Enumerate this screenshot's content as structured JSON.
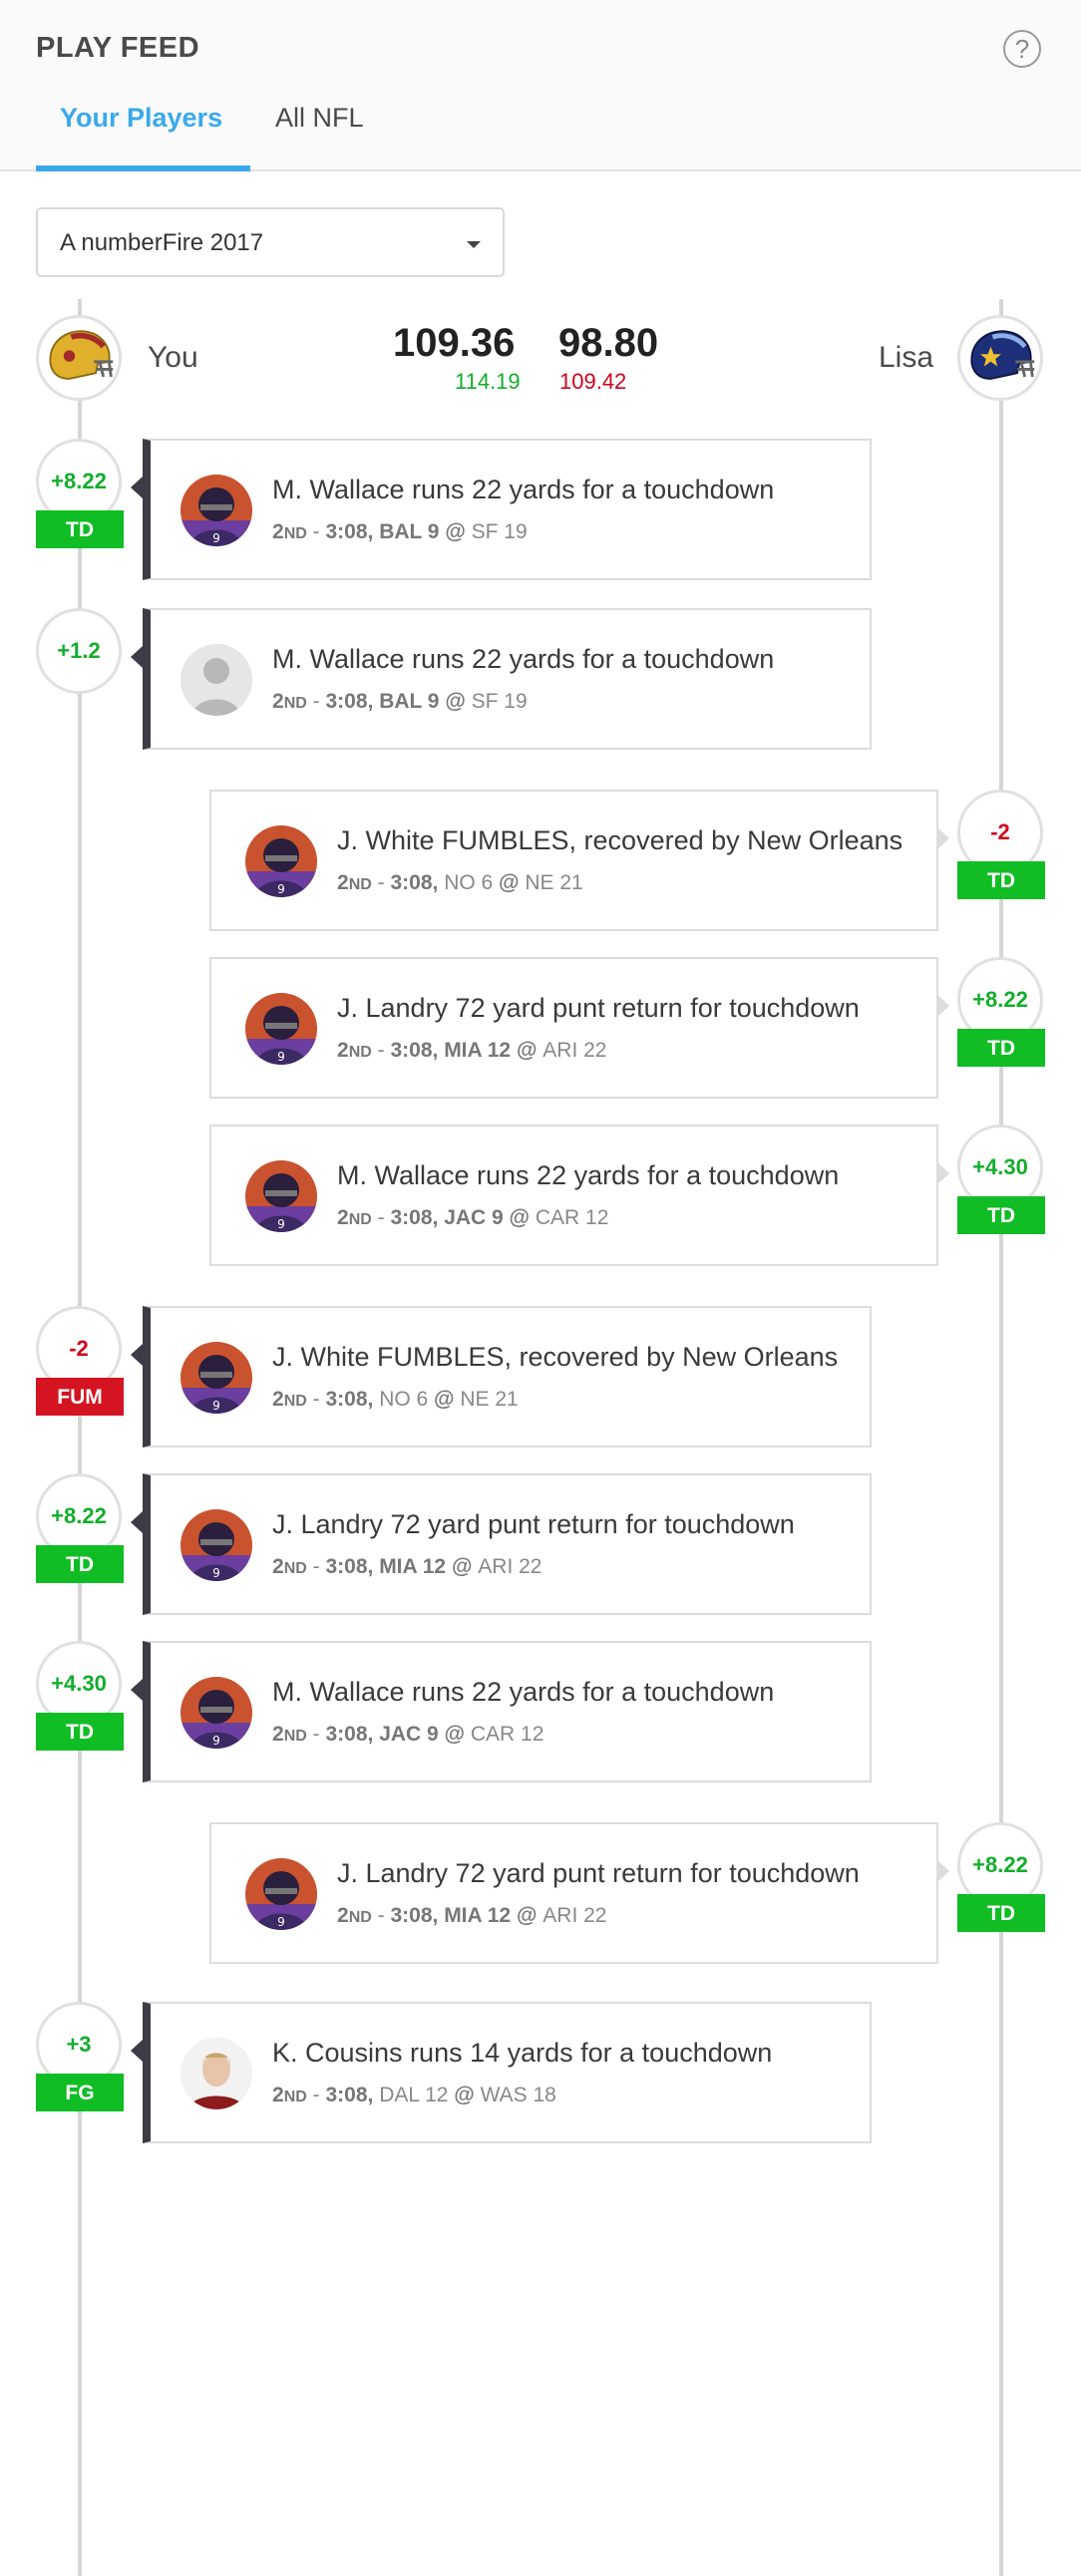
{
  "header": {
    "title": "PLAY FEED",
    "help_icon": "?",
    "tabs": [
      {
        "label": "Your Players",
        "active": true
      },
      {
        "label": "All NFL",
        "active": false
      }
    ]
  },
  "league_select": {
    "value": "A numberFire 2017"
  },
  "matchup": {
    "you": {
      "name": "You",
      "score": "109.36",
      "projected": "114.19",
      "projected_color": "#13ad2c",
      "icon": "helmet-gold-icon"
    },
    "opponent": {
      "name": "Lisa",
      "score": "98.80",
      "projected": "109.42",
      "projected_color": "#d0021b",
      "icon": "helmet-navy-icon"
    }
  },
  "plays": [
    {
      "side": "you",
      "points": "+8.22",
      "tag": "TD",
      "text": "M. Wallace runs 22 yards for a touchdown",
      "quarter": "2",
      "quarter_suffix": "ND",
      "time": "3:08",
      "away": "BAL 9",
      "home": "SF 19",
      "bold": "away",
      "avatar": "player-photo"
    },
    {
      "side": "you",
      "points": "+1.2",
      "tag": "",
      "text": "M. Wallace runs 22 yards for a touchdown",
      "quarter": "2",
      "quarter_suffix": "ND",
      "time": "3:08",
      "away": "BAL 9",
      "home": "SF 19",
      "bold": "away",
      "avatar": "placeholder"
    },
    {
      "side": "opponent",
      "points": "-2",
      "tag": "TD",
      "text": "J. White FUMBLES, recovered by New Orleans",
      "quarter": "2",
      "quarter_suffix": "ND",
      "time": "3:08",
      "away": "NO 6",
      "home": "NE 21",
      "bold": "none",
      "avatar": "player-photo"
    },
    {
      "side": "opponent",
      "points": "+8.22",
      "tag": "TD",
      "text": "J. Landry 72 yard punt return for touchdown",
      "quarter": "2",
      "quarter_suffix": "ND",
      "time": "3:08",
      "away": "MIA 12",
      "home": "ARI 22",
      "bold": "away",
      "avatar": "player-photo"
    },
    {
      "side": "opponent",
      "points": "+4.30",
      "tag": "TD",
      "text": "M. Wallace runs 22 yards for a touchdown",
      "quarter": "2",
      "quarter_suffix": "ND",
      "time": "3:08",
      "away": "JAC 9",
      "home": "CAR 12",
      "bold": "away",
      "avatar": "player-photo"
    },
    {
      "side": "you",
      "points": "-2",
      "tag": "FUM",
      "text": "J. White FUMBLES, recovered by New Orleans",
      "quarter": "2",
      "quarter_suffix": "ND",
      "time": "3:08",
      "away": "NO 6",
      "home": "NE 21",
      "bold": "none",
      "avatar": "player-photo"
    },
    {
      "side": "you",
      "points": "+8.22",
      "tag": "TD",
      "text": "J. Landry 72 yard punt return for touchdown",
      "quarter": "2",
      "quarter_suffix": "ND",
      "time": "3:08",
      "away": "MIA 12",
      "home": "ARI 22",
      "bold": "away",
      "avatar": "player-photo"
    },
    {
      "side": "you",
      "points": "+4.30",
      "tag": "TD",
      "text": "M. Wallace runs 22 yards for a touchdown",
      "quarter": "2",
      "quarter_suffix": "ND",
      "time": "3:08",
      "away": "JAC 9",
      "home": "CAR 12",
      "bold": "away",
      "avatar": "player-photo"
    },
    {
      "side": "opponent",
      "points": "+8.22",
      "tag": "TD",
      "text": "J. Landry 72 yard punt return for touchdown",
      "quarter": "2",
      "quarter_suffix": "ND",
      "time": "3:08",
      "away": "MIA 12",
      "home": "ARI 22",
      "bold": "away",
      "avatar": "player-photo"
    },
    {
      "side": "you",
      "points": "+3",
      "tag": "FG",
      "text": "K. Cousins runs 14 yards for a touchdown",
      "quarter": "2",
      "quarter_suffix": "ND",
      "time": "3:08",
      "away": "DAL 12",
      "home": "WAS 18",
      "bold": "none",
      "avatar": "player-photo-2"
    }
  ]
}
